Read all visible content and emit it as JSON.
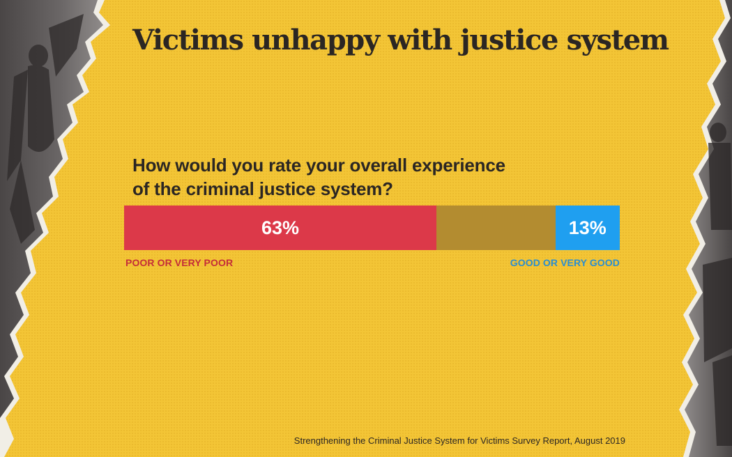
{
  "chart_data": {
    "type": "bar",
    "title": "Victims unhappy with justice system",
    "question_lines": [
      "How would you rate your overall experience",
      "of the criminal justice system?"
    ],
    "series": [
      {
        "name": "POOR OR VERY POOR",
        "value": 63,
        "label": "63%",
        "color": "#dc3949"
      },
      {
        "name": "",
        "value": 24,
        "label": "",
        "color": "#b38c30"
      },
      {
        "name": "GOOD OR VERY GOOD",
        "value": 13,
        "label": "13%",
        "color": "#1f9ff0"
      }
    ],
    "categories_shown": [
      "POOR OR VERY POOR",
      "GOOD OR VERY GOOD"
    ],
    "label_colors": {
      "poor": "#c42d38",
      "good": "#2a8ed0"
    },
    "source": "Strengthening the Criminal Justice System for Victims Survey Report, August 2019",
    "background_color": "#f3c536"
  }
}
